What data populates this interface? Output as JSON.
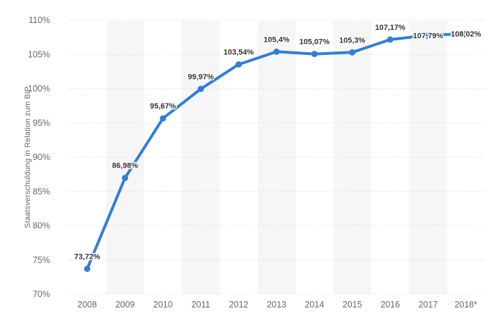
{
  "chart_data": {
    "type": "line",
    "title": "",
    "ylabel": "Staatsverschuldung in Relation zum BIP",
    "xlabel": "",
    "categories": [
      "2008",
      "2009",
      "2010",
      "2011",
      "2012",
      "2013",
      "2014",
      "2015",
      "2016",
      "2017",
      "2018*"
    ],
    "values": [
      73.72,
      86.98,
      95.67,
      99.97,
      103.54,
      105.4,
      105.07,
      105.3,
      107.17,
      107.79,
      108.02
    ],
    "point_labels": [
      "73,72%",
      "86,98%",
      "95,67%",
      "99,97%",
      "103,54%",
      "105,4%",
      "105,07%",
      "105,3%",
      "107,17%",
      "107,79%",
      "108,02%"
    ],
    "label_placement": [
      "above",
      "above",
      "above",
      "above",
      "above",
      "above",
      "above",
      "above",
      "above",
      "on-point",
      "on-point"
    ],
    "ylim": [
      70,
      110
    ],
    "ytick_step": 5,
    "ytick_labels": [
      "70%",
      "75%",
      "80%",
      "85%",
      "90%",
      "95%",
      "100%",
      "105%",
      "110%"
    ],
    "grid": "horizontal-dotted",
    "alternating_column_bands": true,
    "legend": "none",
    "colors": {
      "line": "#2f7ed8",
      "marker": "#2f7ed8",
      "band": "#f6f6f6",
      "gridline": "#cccccc",
      "axis_text": "#666666",
      "data_label": "#333333",
      "background": "#ffffff"
    }
  }
}
